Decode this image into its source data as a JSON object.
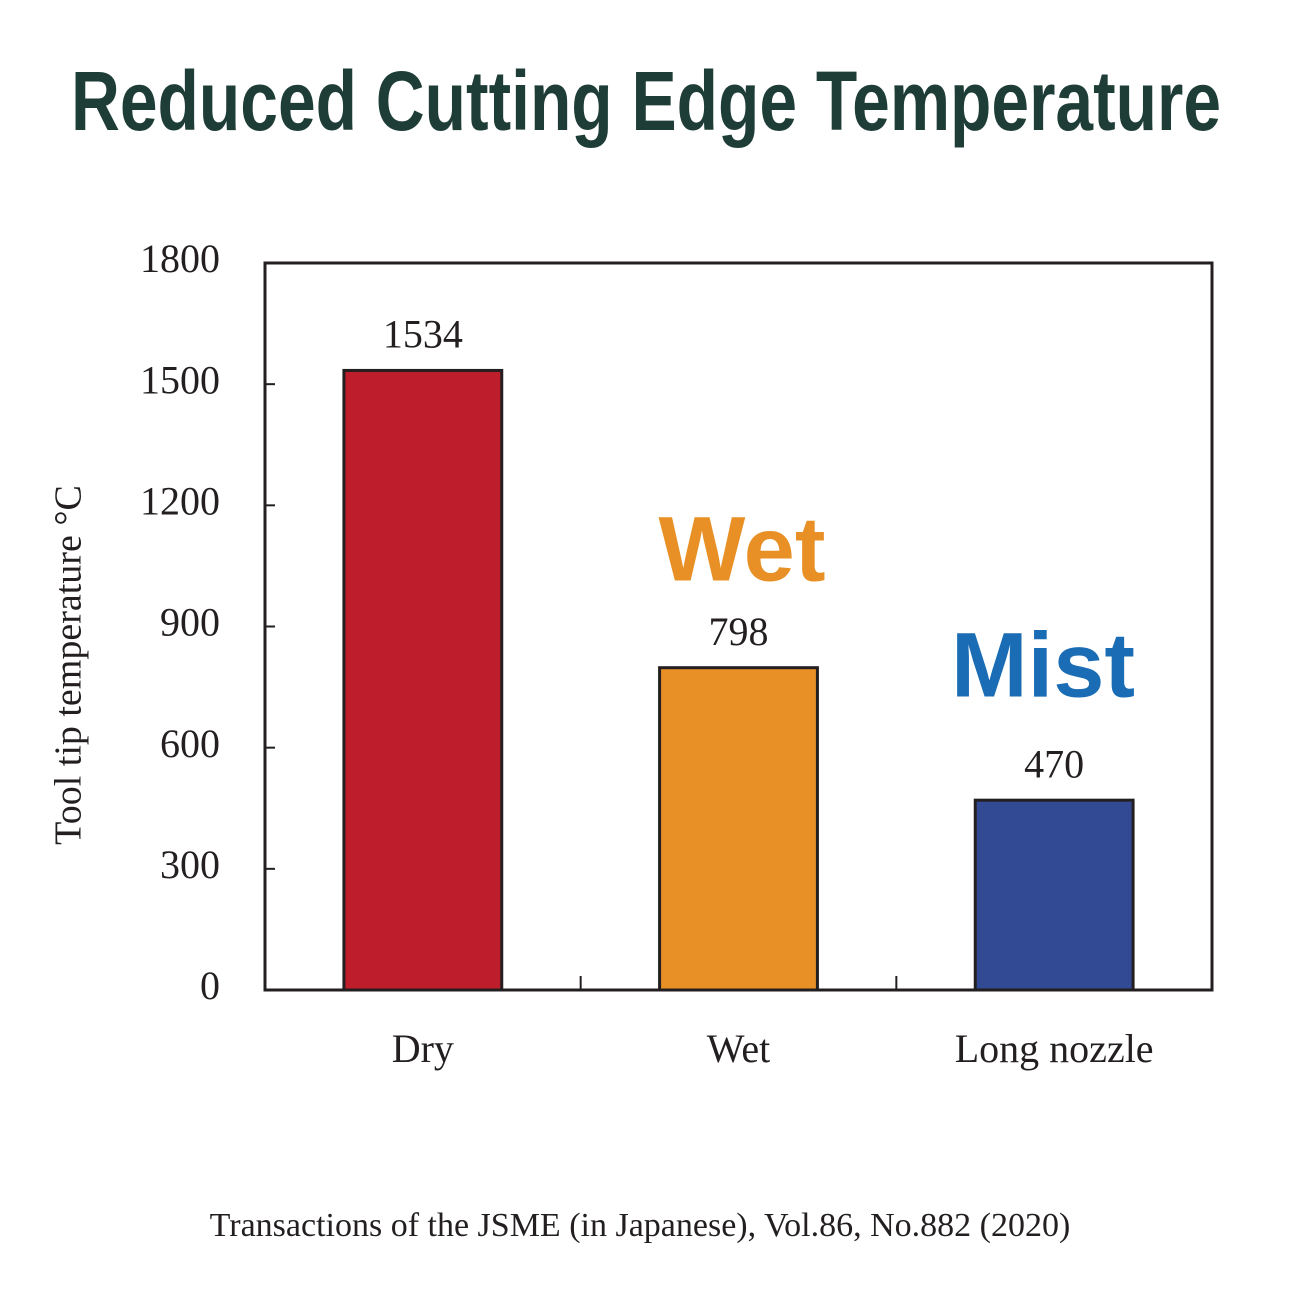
{
  "chart_data": {
    "type": "bar",
    "title": "Reduced Cutting Edge Temperature",
    "y_label": "Tool tip temperature °C",
    "categories": [
      "Dry",
      "Wet",
      "Long nozzle"
    ],
    "values": [
      1534,
      798,
      470
    ],
    "colors": [
      "#be1e2b",
      "#e89025",
      "#314a93"
    ],
    "ylim": [
      0,
      1800
    ],
    "yticks": [
      0,
      300,
      600,
      900,
      1200,
      1500,
      1800
    ],
    "annotations": [
      {
        "text": "Wet",
        "color": "#e89025"
      },
      {
        "text": "Mist",
        "color": "#1a6cb4"
      }
    ],
    "source": "Transactions of the JSME (in Japanese), Vol.86, No.882 (2020)"
  }
}
